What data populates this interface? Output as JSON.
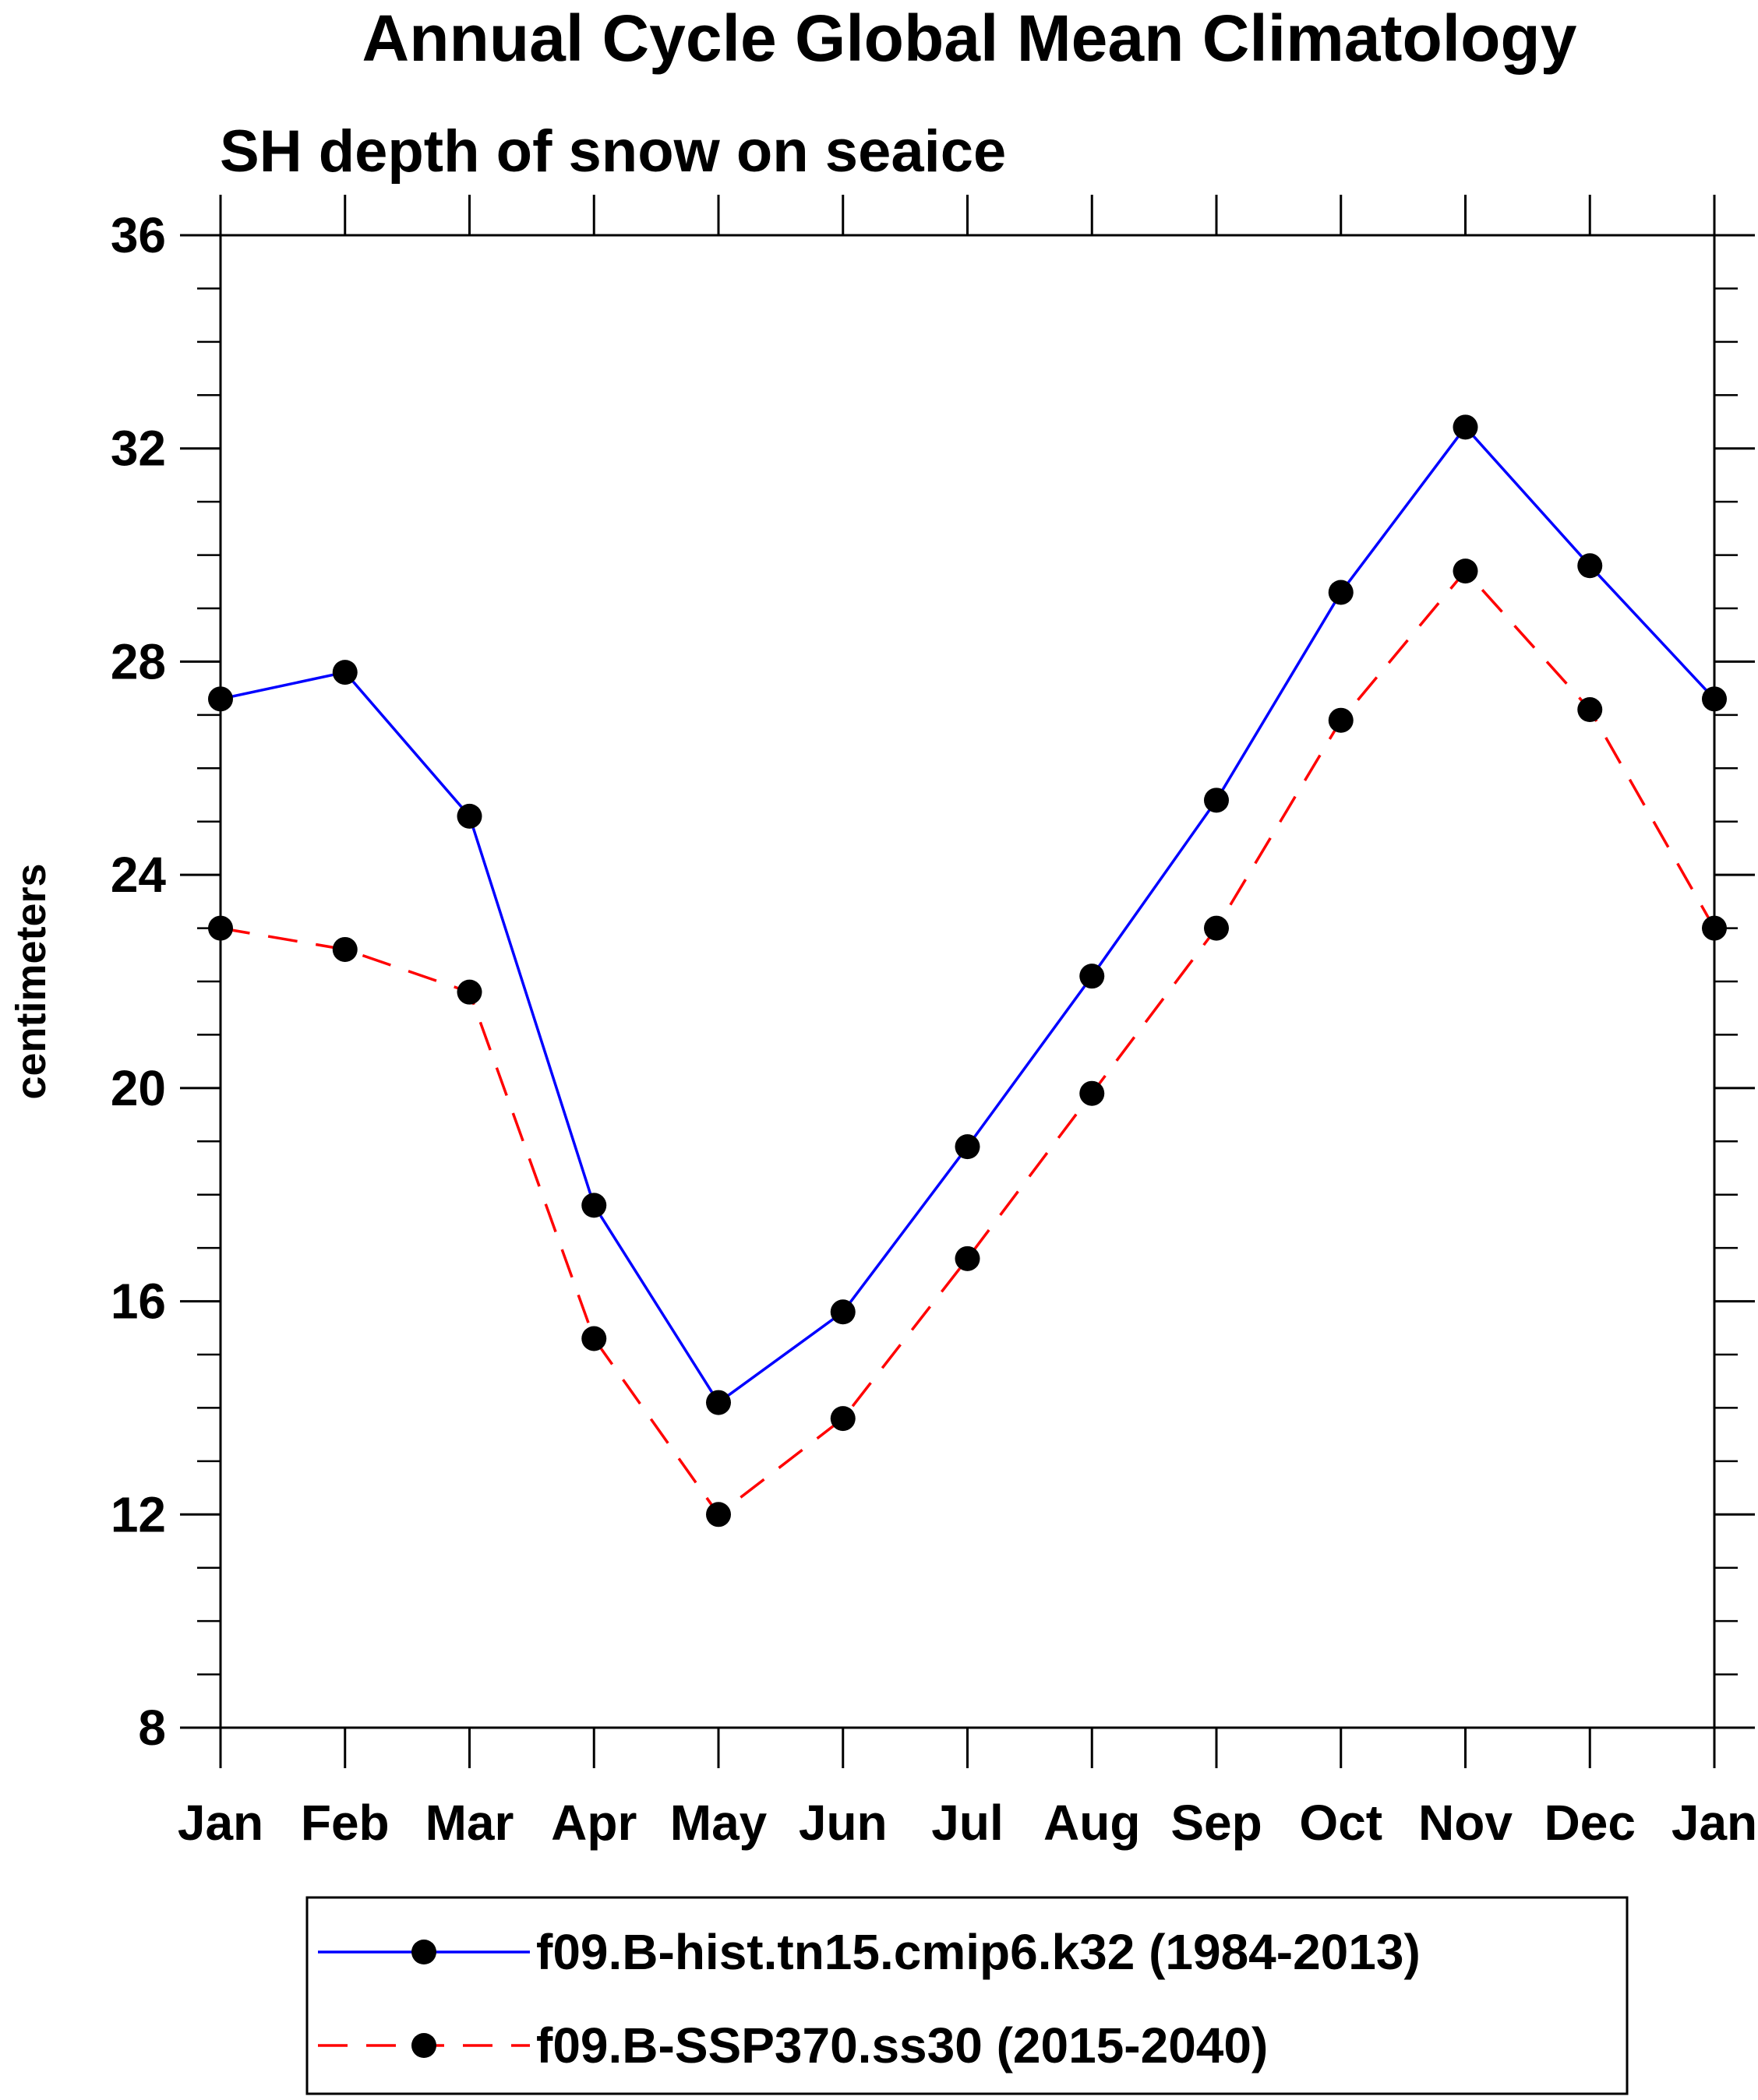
{
  "chart_data": {
    "type": "line",
    "title": "Annual Cycle Global Mean Climatology",
    "subtitle": "SH depth of snow on seaice",
    "xlabel": "",
    "ylabel": "centimeters",
    "categories": [
      "Jan",
      "Feb",
      "Mar",
      "Apr",
      "May",
      "Jun",
      "Jul",
      "Aug",
      "Sep",
      "Oct",
      "Nov",
      "Dec",
      "Jan"
    ],
    "ylim": [
      8,
      36
    ],
    "yticks": [
      8,
      12,
      16,
      20,
      24,
      28,
      32,
      36
    ],
    "series": [
      {
        "name": "f09.B-hist.tn15.cmip6.k32 (1984-2013)",
        "color": "#0000ff",
        "dash": "solid",
        "values": [
          27.3,
          27.8,
          25.1,
          17.8,
          14.1,
          15.8,
          18.9,
          22.1,
          25.4,
          29.3,
          32.4,
          29.8,
          27.3
        ]
      },
      {
        "name": "f09.B-SSP370.ss30 (2015-2040)",
        "color": "#ff0000",
        "dash": "dashed",
        "values": [
          23.0,
          22.6,
          21.8,
          15.3,
          12.0,
          13.8,
          16.8,
          19.9,
          23.0,
          26.9,
          29.7,
          27.1,
          23.0
        ]
      }
    ],
    "legend_position": "bottom"
  }
}
